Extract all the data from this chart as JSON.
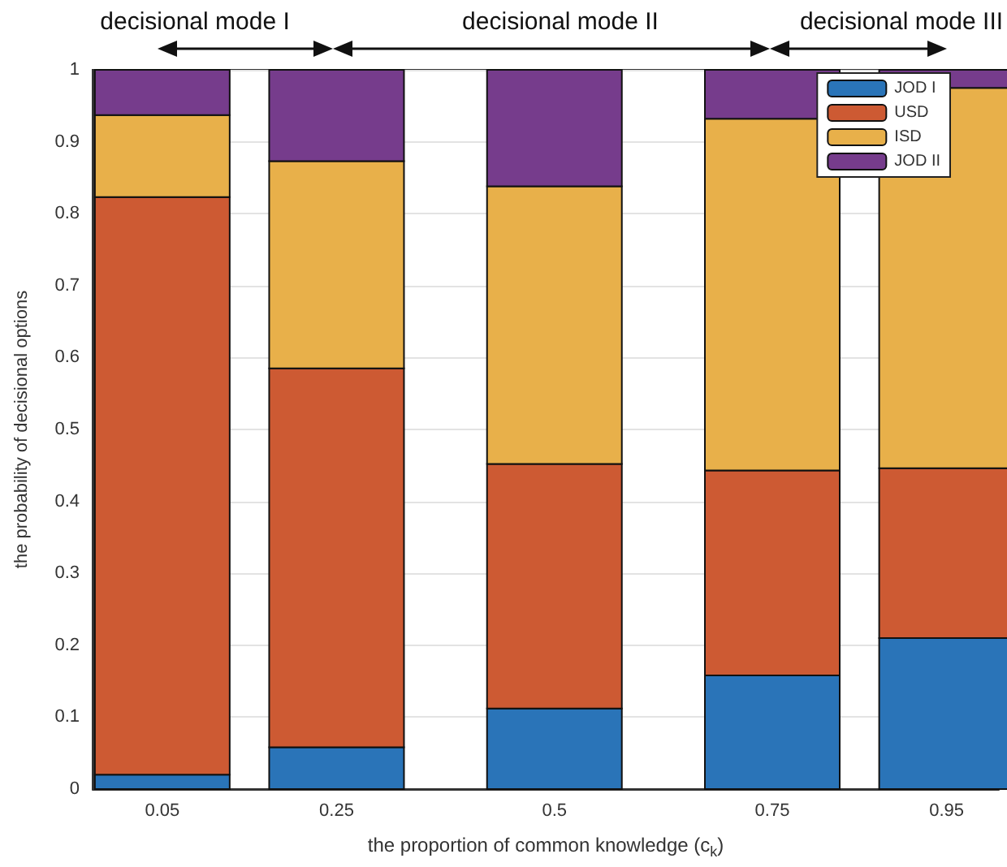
{
  "chart_data": {
    "type": "bar",
    "stacked": true,
    "x": [
      0.05,
      0.25,
      0.5,
      0.75,
      0.95
    ],
    "xlabel": "the proportion of common knowledge (c$_{k}$)",
    "ylabel": "the probability of decisional options",
    "series": [
      {
        "name": "JOD I",
        "color": "#2a74b8",
        "values": [
          0.02,
          0.058,
          0.112,
          0.158,
          0.21
        ]
      },
      {
        "name": "USD",
        "color": "#cd5a33",
        "values": [
          0.803,
          0.527,
          0.34,
          0.285,
          0.236
        ]
      },
      {
        "name": "ISD",
        "color": "#e8b04a",
        "values": [
          0.114,
          0.288,
          0.386,
          0.489,
          0.529
        ]
      },
      {
        "name": "JOD II",
        "color": "#763c8c",
        "values": [
          0.063,
          0.127,
          0.162,
          0.068,
          0.025
        ]
      }
    ],
    "xlim": [
      -0.03,
      1.01
    ],
    "xticks": [
      0.05,
      0.25,
      0.5,
      0.75,
      0.95
    ],
    "ylim": [
      0,
      1
    ],
    "yticks": [
      0,
      0.1,
      0.2,
      0.3,
      0.4,
      0.5,
      0.6,
      0.7,
      0.8,
      0.9,
      1
    ],
    "grid": "y",
    "legend": "top right",
    "annotations": [
      "decisional mode I",
      "decisional mode II",
      "decisional mode III"
    ]
  }
}
